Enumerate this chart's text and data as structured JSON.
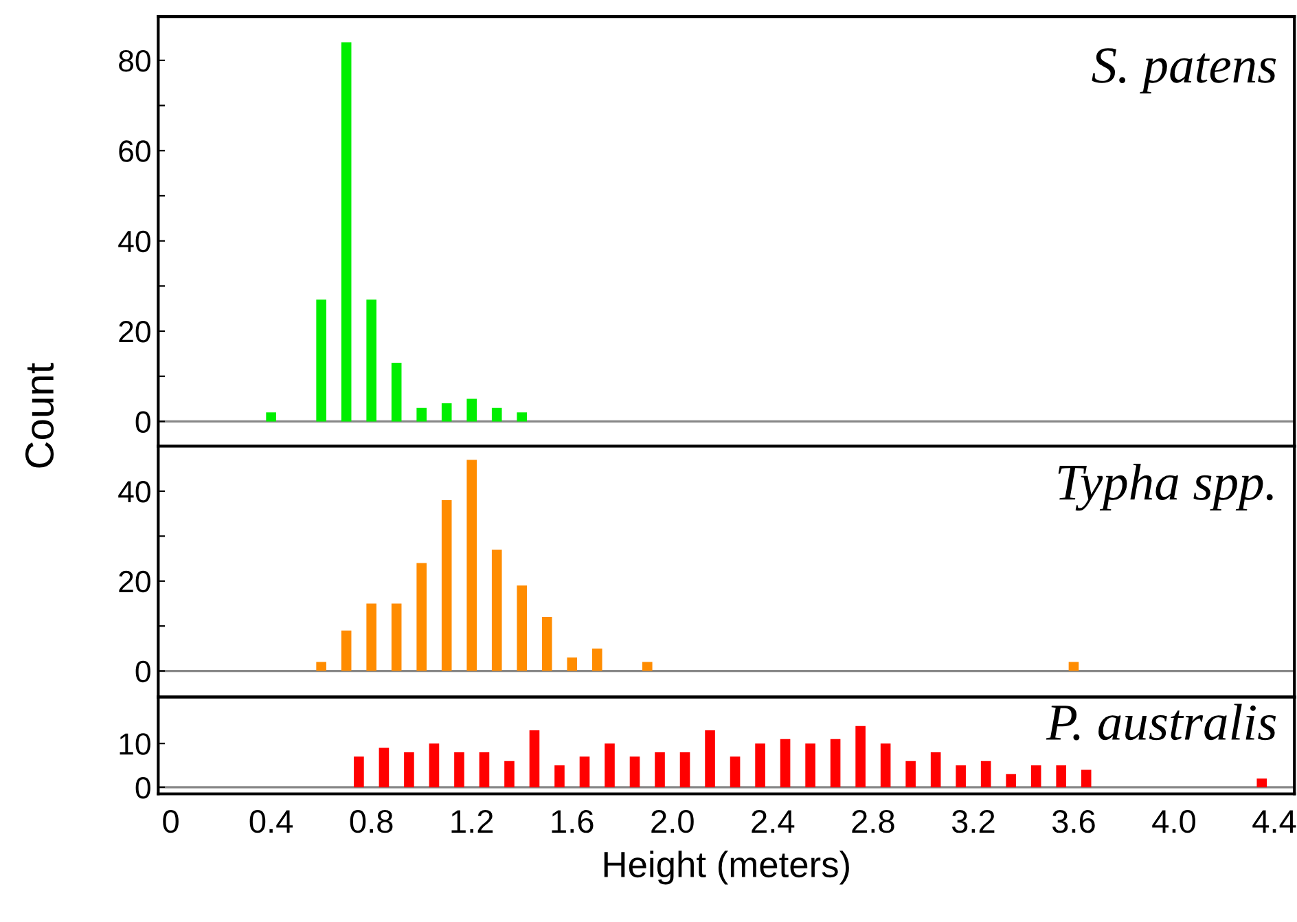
{
  "chart_data": [
    {
      "type": "histogram",
      "title": "S. patens",
      "bins": [
        0.35,
        0.45,
        0.55,
        0.65,
        0.75,
        0.85,
        0.95,
        1.05,
        1.15,
        1.25,
        1.35,
        1.45
      ],
      "values": [
        2,
        0,
        27,
        84,
        27,
        13,
        3,
        4,
        5,
        3,
        2
      ],
      "color": "#00ee00",
      "xlim": [
        -0.05,
        4.48
      ],
      "ylim": [
        -5.5,
        89.7
      ],
      "yticks": [
        0,
        {
          "value": 10,
          "label": null
        },
        20,
        {
          "value": 30,
          "label": null
        },
        40,
        {
          "value": 50,
          "label": null
        },
        60,
        {
          "value": 70,
          "label": null
        },
        80
      ],
      "tick_labels": "y",
      "grid": false,
      "ref_lines": [
        {
          "axis": "y",
          "value": 0,
          "color": "#888888"
        }
      ]
    },
    {
      "type": "histogram",
      "title": "Typha spp.",
      "ylabel": "Count",
      "bins": [
        0.55,
        0.65,
        0.75,
        0.85,
        0.95,
        1.05,
        1.15,
        1.25,
        1.35,
        1.45,
        1.55,
        1.65,
        1.75,
        1.85,
        1.95,
        2.05,
        2.15,
        2.25,
        2.35,
        2.45,
        2.55,
        2.65,
        2.75,
        2.85,
        2.95,
        3.05,
        3.15,
        3.25,
        3.35,
        3.45,
        3.55,
        3.65
      ],
      "values": [
        2,
        9,
        15,
        15,
        24,
        38,
        47,
        27,
        19,
        12,
        3,
        5,
        0,
        2,
        0,
        0,
        0,
        0,
        0,
        0,
        0,
        0,
        0,
        0,
        0,
        0,
        0,
        0,
        0,
        0,
        2
      ],
      "color": "#ff8c00",
      "xlim": [
        -0.05,
        4.48
      ],
      "ylim": [
        -5.8,
        50
      ],
      "yticks": [
        0,
        {
          "value": 10,
          "label": null
        },
        20,
        {
          "value": 30,
          "label": null
        },
        40
      ],
      "tick_labels": "y",
      "grid": false,
      "ref_lines": [
        {
          "axis": "y",
          "value": 0,
          "color": "#888888"
        }
      ]
    },
    {
      "type": "histogram",
      "title": "P. australis",
      "xlabel": "Height (meters)",
      "bins": [
        0.7,
        0.8,
        0.9,
        1.0,
        1.1,
        1.2,
        1.3,
        1.4,
        1.5,
        1.6,
        1.7,
        1.8,
        1.9,
        2.0,
        2.1,
        2.2,
        2.3,
        2.4,
        2.5,
        2.6,
        2.7,
        2.8,
        2.9,
        3.0,
        3.1,
        3.2,
        3.3,
        3.4,
        3.5,
        3.6,
        3.7,
        3.8,
        3.9,
        4.0,
        4.1,
        4.2,
        4.3,
        4.4
      ],
      "values": [
        7,
        9,
        8,
        10,
        8,
        8,
        6,
        13,
        5,
        7,
        10,
        7,
        8,
        8,
        13,
        7,
        10,
        11,
        10,
        11,
        14,
        10,
        6,
        8,
        5,
        6,
        3,
        5,
        5,
        4,
        0,
        0,
        0,
        0,
        0,
        0,
        2
      ],
      "color": "#ff0000",
      "xlim": [
        -0.05,
        4.48
      ],
      "xticks": [
        0,
        0.4,
        0.8,
        1.2,
        1.6,
        {
          "value": 2,
          "label": "2.0"
        },
        2.4,
        2.8,
        3.2,
        3.6,
        {
          "value": 4,
          "label": "4.0"
        },
        4.4
      ],
      "ylim": [
        -1.5,
        20.6
      ],
      "yticks": [
        0,
        10
      ],
      "grid": false,
      "ref_lines": [
        {
          "axis": "y",
          "value": 0,
          "color": "#888888"
        }
      ]
    }
  ]
}
